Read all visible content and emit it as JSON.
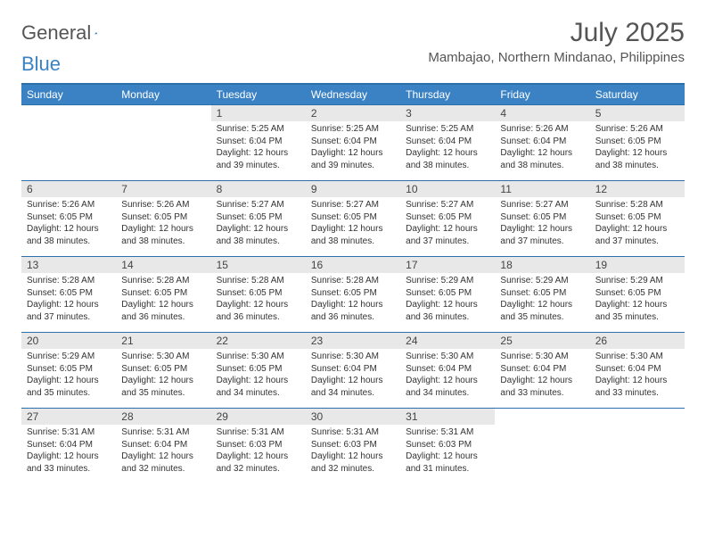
{
  "brand": {
    "word1": "General",
    "word2": "Blue"
  },
  "title": "July 2025",
  "location": "Mambajao, Northern Mindanao, Philippines",
  "colors": {
    "header_bg": "#3b82c4",
    "header_border": "#2d6fa8",
    "daynum_bg": "#e8e8e8",
    "text": "#333333"
  },
  "weekdays": [
    "Sunday",
    "Monday",
    "Tuesday",
    "Wednesday",
    "Thursday",
    "Friday",
    "Saturday"
  ],
  "weeks": [
    [
      {
        "n": "",
        "sr": "",
        "ss": "",
        "dl": ""
      },
      {
        "n": "",
        "sr": "",
        "ss": "",
        "dl": ""
      },
      {
        "n": "1",
        "sr": "5:25 AM",
        "ss": "6:04 PM",
        "dl": "12 hours and 39 minutes."
      },
      {
        "n": "2",
        "sr": "5:25 AM",
        "ss": "6:04 PM",
        "dl": "12 hours and 39 minutes."
      },
      {
        "n": "3",
        "sr": "5:25 AM",
        "ss": "6:04 PM",
        "dl": "12 hours and 38 minutes."
      },
      {
        "n": "4",
        "sr": "5:26 AM",
        "ss": "6:04 PM",
        "dl": "12 hours and 38 minutes."
      },
      {
        "n": "5",
        "sr": "5:26 AM",
        "ss": "6:05 PM",
        "dl": "12 hours and 38 minutes."
      }
    ],
    [
      {
        "n": "6",
        "sr": "5:26 AM",
        "ss": "6:05 PM",
        "dl": "12 hours and 38 minutes."
      },
      {
        "n": "7",
        "sr": "5:26 AM",
        "ss": "6:05 PM",
        "dl": "12 hours and 38 minutes."
      },
      {
        "n": "8",
        "sr": "5:27 AM",
        "ss": "6:05 PM",
        "dl": "12 hours and 38 minutes."
      },
      {
        "n": "9",
        "sr": "5:27 AM",
        "ss": "6:05 PM",
        "dl": "12 hours and 38 minutes."
      },
      {
        "n": "10",
        "sr": "5:27 AM",
        "ss": "6:05 PM",
        "dl": "12 hours and 37 minutes."
      },
      {
        "n": "11",
        "sr": "5:27 AM",
        "ss": "6:05 PM",
        "dl": "12 hours and 37 minutes."
      },
      {
        "n": "12",
        "sr": "5:28 AM",
        "ss": "6:05 PM",
        "dl": "12 hours and 37 minutes."
      }
    ],
    [
      {
        "n": "13",
        "sr": "5:28 AM",
        "ss": "6:05 PM",
        "dl": "12 hours and 37 minutes."
      },
      {
        "n": "14",
        "sr": "5:28 AM",
        "ss": "6:05 PM",
        "dl": "12 hours and 36 minutes."
      },
      {
        "n": "15",
        "sr": "5:28 AM",
        "ss": "6:05 PM",
        "dl": "12 hours and 36 minutes."
      },
      {
        "n": "16",
        "sr": "5:28 AM",
        "ss": "6:05 PM",
        "dl": "12 hours and 36 minutes."
      },
      {
        "n": "17",
        "sr": "5:29 AM",
        "ss": "6:05 PM",
        "dl": "12 hours and 36 minutes."
      },
      {
        "n": "18",
        "sr": "5:29 AM",
        "ss": "6:05 PM",
        "dl": "12 hours and 35 minutes."
      },
      {
        "n": "19",
        "sr": "5:29 AM",
        "ss": "6:05 PM",
        "dl": "12 hours and 35 minutes."
      }
    ],
    [
      {
        "n": "20",
        "sr": "5:29 AM",
        "ss": "6:05 PM",
        "dl": "12 hours and 35 minutes."
      },
      {
        "n": "21",
        "sr": "5:30 AM",
        "ss": "6:05 PM",
        "dl": "12 hours and 35 minutes."
      },
      {
        "n": "22",
        "sr": "5:30 AM",
        "ss": "6:05 PM",
        "dl": "12 hours and 34 minutes."
      },
      {
        "n": "23",
        "sr": "5:30 AM",
        "ss": "6:04 PM",
        "dl": "12 hours and 34 minutes."
      },
      {
        "n": "24",
        "sr": "5:30 AM",
        "ss": "6:04 PM",
        "dl": "12 hours and 34 minutes."
      },
      {
        "n": "25",
        "sr": "5:30 AM",
        "ss": "6:04 PM",
        "dl": "12 hours and 33 minutes."
      },
      {
        "n": "26",
        "sr": "5:30 AM",
        "ss": "6:04 PM",
        "dl": "12 hours and 33 minutes."
      }
    ],
    [
      {
        "n": "27",
        "sr": "5:31 AM",
        "ss": "6:04 PM",
        "dl": "12 hours and 33 minutes."
      },
      {
        "n": "28",
        "sr": "5:31 AM",
        "ss": "6:04 PM",
        "dl": "12 hours and 32 minutes."
      },
      {
        "n": "29",
        "sr": "5:31 AM",
        "ss": "6:03 PM",
        "dl": "12 hours and 32 minutes."
      },
      {
        "n": "30",
        "sr": "5:31 AM",
        "ss": "6:03 PM",
        "dl": "12 hours and 32 minutes."
      },
      {
        "n": "31",
        "sr": "5:31 AM",
        "ss": "6:03 PM",
        "dl": "12 hours and 31 minutes."
      },
      {
        "n": "",
        "sr": "",
        "ss": "",
        "dl": ""
      },
      {
        "n": "",
        "sr": "",
        "ss": "",
        "dl": ""
      }
    ]
  ],
  "labels": {
    "sunrise": "Sunrise:",
    "sunset": "Sunset:",
    "daylight": "Daylight:"
  }
}
